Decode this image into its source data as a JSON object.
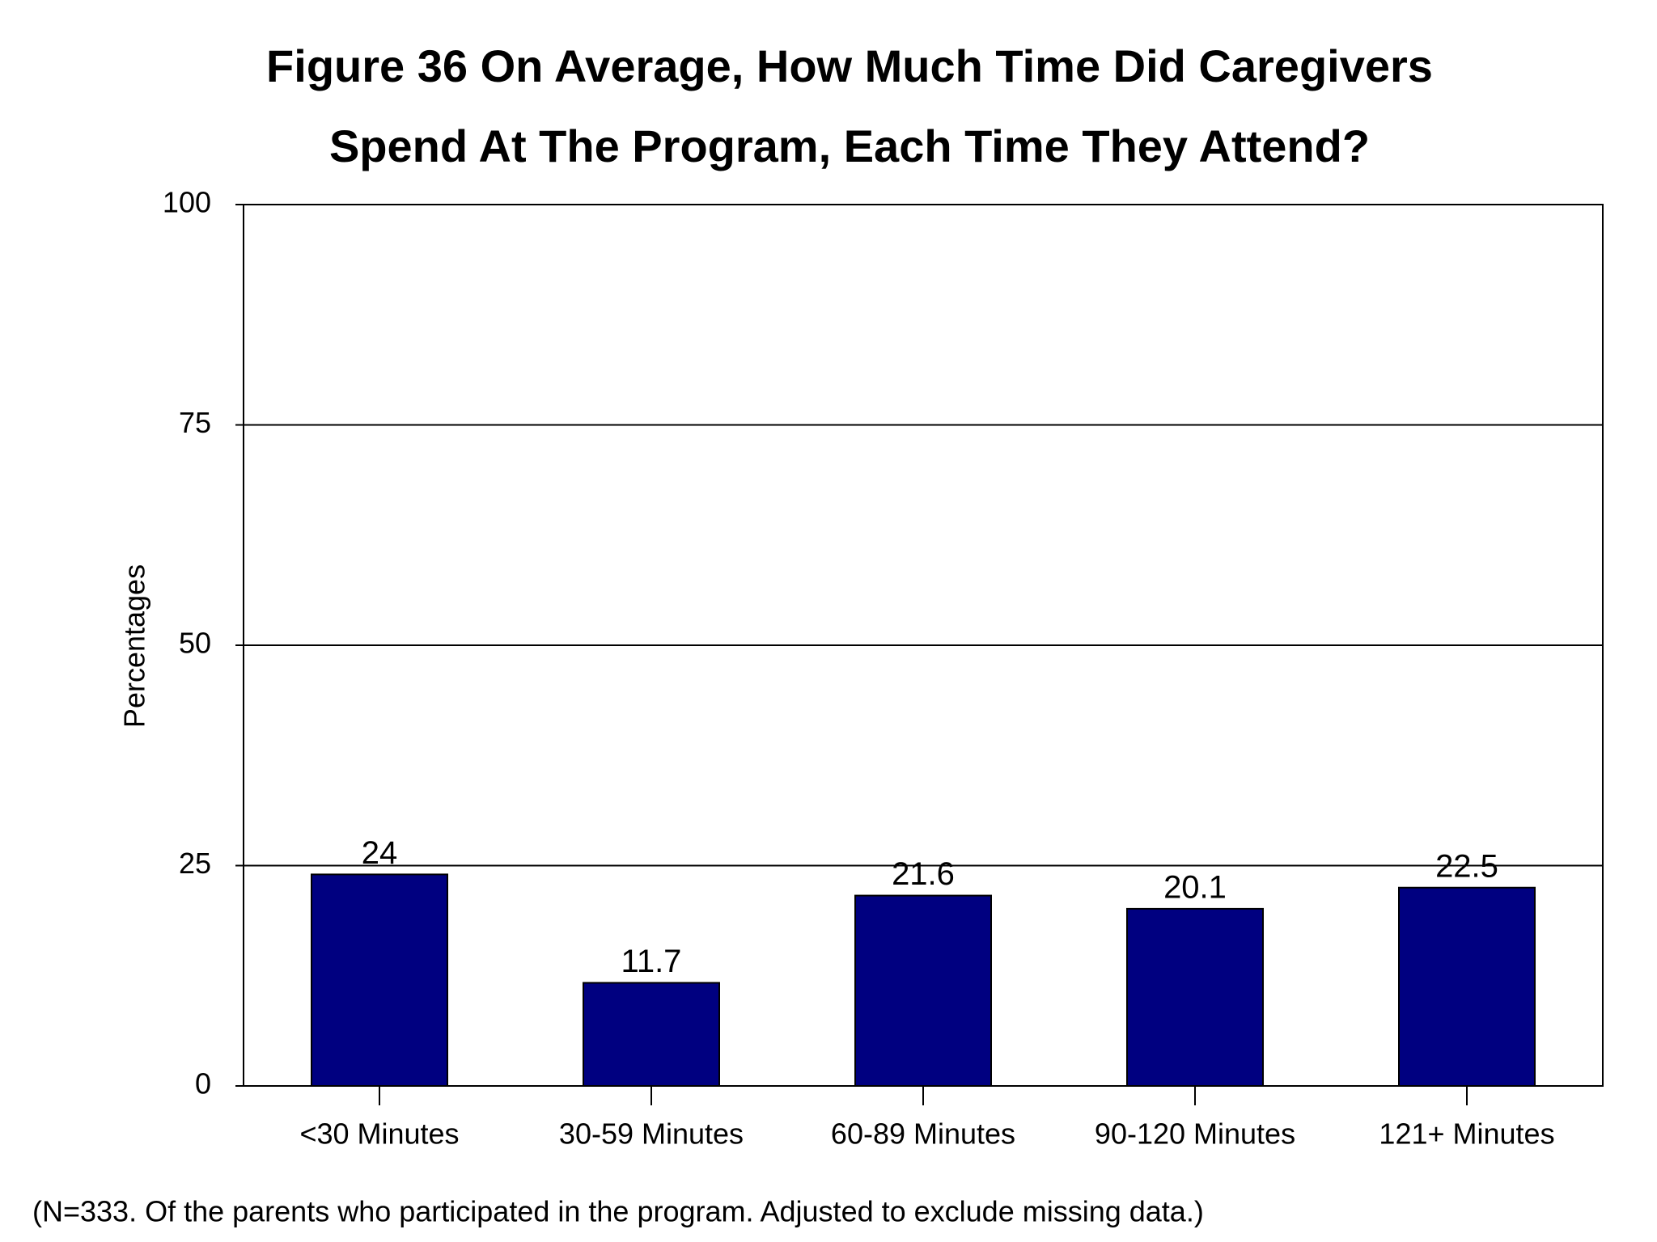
{
  "chart_data": {
    "type": "bar",
    "title": [
      "Figure 36  On Average, How Much Time Did Caregivers",
      "Spend At The Program, Each Time They Attend?"
    ],
    "y_label": "Percentages",
    "categories": [
      "<30 Minutes",
      "30-59 Minutes",
      "60-89 Minutes",
      "90-120 Minutes",
      "121+ Minutes"
    ],
    "values": [
      24,
      11.7,
      21.6,
      20.1,
      22.5
    ],
    "color": "#000080",
    "ylim": [
      0,
      100
    ],
    "yticks": [
      0,
      25,
      50,
      75,
      100
    ],
    "grid": true,
    "note": "(N=333. Of the parents who participated in the program. Adjusted to exclude missing data.)"
  }
}
